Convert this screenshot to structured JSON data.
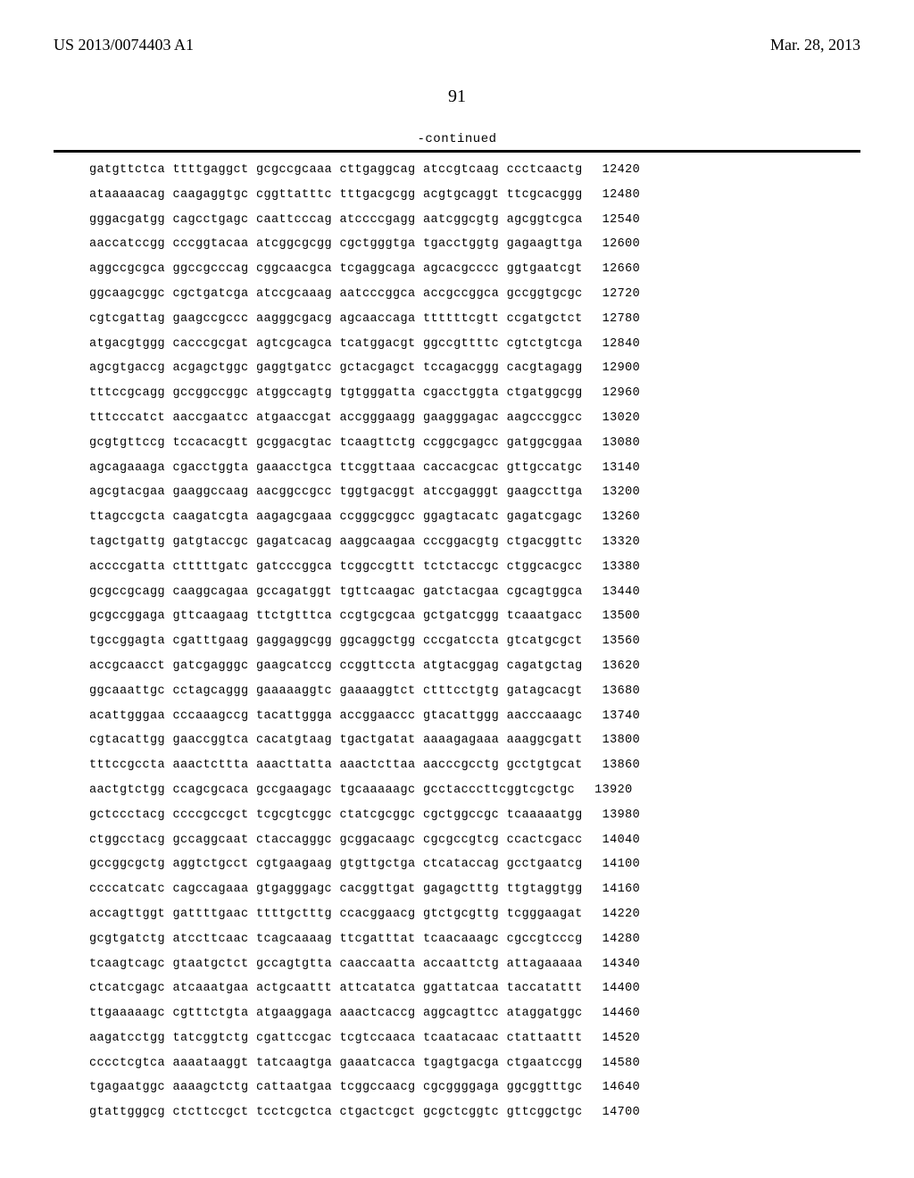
{
  "header": {
    "left": "US 2013/0074403 A1",
    "right": "Mar. 28, 2013"
  },
  "page_number": "91",
  "continued_label": "-continued",
  "sequence": {
    "lines": [
      {
        "seq": "gatgttctca ttttgaggct gcgccgcaaa cttgaggcag atccgtcaag ccctcaactg",
        "pos": "12420"
      },
      {
        "seq": "ataaaaacag caagaggtgc cggttatttc tttgacgcgg acgtgcaggt ttcgcacggg",
        "pos": "12480"
      },
      {
        "seq": "gggacgatgg cagcctgagc caattcccag atccccgagg aatcggcgtg agcggtcgca",
        "pos": "12540"
      },
      {
        "seq": "aaccatccgg cccggtacaa atcggcgcgg cgctgggtga tgacctggtg gagaagttga",
        "pos": "12600"
      },
      {
        "seq": "aggccgcgca ggccgcccag cggcaacgca tcgaggcaga agcacgcccc ggtgaatcgt",
        "pos": "12660"
      },
      {
        "seq": "ggcaagcggc cgctgatcga atccgcaaag aatcccggca accgccggca gccggtgcgc",
        "pos": "12720"
      },
      {
        "seq": "cgtcgattag gaagccgccc aagggcgacg agcaaccaga ttttttcgtt ccgatgctct",
        "pos": "12780"
      },
      {
        "seq": "atgacgtggg cacccgcgat agtcgcagca tcatggacgt ggccgttttc cgtctgtcga",
        "pos": "12840"
      },
      {
        "seq": "agcgtgaccg acgagctggc gaggtgatcc gctacgagct tccagacggg cacgtagagg",
        "pos": "12900"
      },
      {
        "seq": "tttccgcagg gccggccggc atggccagtg tgtgggatta cgacctggta ctgatggcgg",
        "pos": "12960"
      },
      {
        "seq": "tttcccatct aaccgaatcc atgaaccgat accgggaagg gaagggagac aagcccggcc",
        "pos": "13020"
      },
      {
        "seq": "gcgtgttccg tccacacgtt gcggacgtac tcaagttctg ccggcgagcc gatggcggaa",
        "pos": "13080"
      },
      {
        "seq": "agcagaaaga cgacctggta gaaacctgca ttcggttaaa caccacgcac gttgccatgc",
        "pos": "13140"
      },
      {
        "seq": "agcgtacgaa gaaggccaag aacggccgcc tggtgacggt atccgagggt gaagccttga",
        "pos": "13200"
      },
      {
        "seq": "ttagccgcta caagatcgta aagagcgaaa ccgggcggcc ggagtacatc gagatcgagc",
        "pos": "13260"
      },
      {
        "seq": "tagctgattg gatgtaccgc gagatcacag aaggcaagaa cccggacgtg ctgacggttc",
        "pos": "13320"
      },
      {
        "seq": "accccgatta ctttttgatc gatcccggca tcggccgttt tctctaccgc ctggcacgcc",
        "pos": "13380"
      },
      {
        "seq": "gcgccgcagg caaggcagaa gccagatggt tgttcaagac gatctacgaa cgcagtggca",
        "pos": "13440"
      },
      {
        "seq": "gcgccggaga gttcaagaag ttctgtttca ccgtgcgcaa gctgatcggg tcaaatgacc",
        "pos": "13500"
      },
      {
        "seq": "tgccggagta cgatttgaag gaggaggcgg ggcaggctgg cccgatccta gtcatgcgct",
        "pos": "13560"
      },
      {
        "seq": "accgcaacct gatcgagggc gaagcatccg ccggttccta atgtacggag cagatgctag",
        "pos": "13620"
      },
      {
        "seq": "ggcaaattgc cctagcaggg gaaaaaggtc gaaaaggtct ctttcctgtg gatagcacgt",
        "pos": "13680"
      },
      {
        "seq": "acattgggaa cccaaagccg tacattggga accggaaccc gtacattggg aacccaaagc",
        "pos": "13740"
      },
      {
        "seq": "cgtacattgg gaaccggtca cacatgtaag tgactgatat aaaagagaaa aaaggcgatt",
        "pos": "13800"
      },
      {
        "seq": "tttccgccta aaactcttta aaacttatta aaactcttaa aacccgcctg gcctgtgcat",
        "pos": "13860"
      },
      {
        "seq": "aactgtctgg ccagcgcaca gccgaagagc tgcaaaaagc gcctacccttcggtcgctgc",
        "pos": "13920"
      },
      {
        "seq": "gctccctacg ccccgccgct tcgcgtcggc ctatcgcggc cgctggccgc tcaaaaatgg",
        "pos": "13980"
      },
      {
        "seq": "ctggcctacg gccaggcaat ctaccagggc gcggacaagc cgcgccgtcg ccactcgacc",
        "pos": "14040"
      },
      {
        "seq": "gccggcgctg aggtctgcct cgtgaagaag gtgttgctga ctcataccag gcctgaatcg",
        "pos": "14100"
      },
      {
        "seq": "ccccatcatc cagccagaaa gtgagggagc cacggttgat gagagctttg ttgtaggtgg",
        "pos": "14160"
      },
      {
        "seq": "accagttggt gattttgaac ttttgctttg ccacggaacg gtctgcgttg tcgggaagat",
        "pos": "14220"
      },
      {
        "seq": "gcgtgatctg atccttcaac tcagcaaaag ttcgatttat tcaacaaagc cgccgtcccg",
        "pos": "14280"
      },
      {
        "seq": "tcaagtcagc gtaatgctct gccagtgtta caaccaatta accaattctg attagaaaaa",
        "pos": "14340"
      },
      {
        "seq": "ctcatcgagc atcaaatgaa actgcaattt attcatatca ggattatcaa taccatattt",
        "pos": "14400"
      },
      {
        "seq": "ttgaaaaagc cgtttctgta atgaaggaga aaactcaccg aggcagttcc ataggatggc",
        "pos": "14460"
      },
      {
        "seq": "aagatcctgg tatcggtctg cgattccgac tcgtccaaca tcaatacaac ctattaattt",
        "pos": "14520"
      },
      {
        "seq": "cccctcgtca aaaataaggt tatcaagtga gaaatcacca tgagtgacga ctgaatccgg",
        "pos": "14580"
      },
      {
        "seq": "tgagaatggc aaaagctctg cattaatgaa tcggccaacg cgcggggaga ggcggtttgc",
        "pos": "14640"
      },
      {
        "seq": "gtattgggcg ctcttccgct tcctcgctca ctgactcgct gcgctcggtc gttcggctgc",
        "pos": "14700"
      }
    ]
  }
}
